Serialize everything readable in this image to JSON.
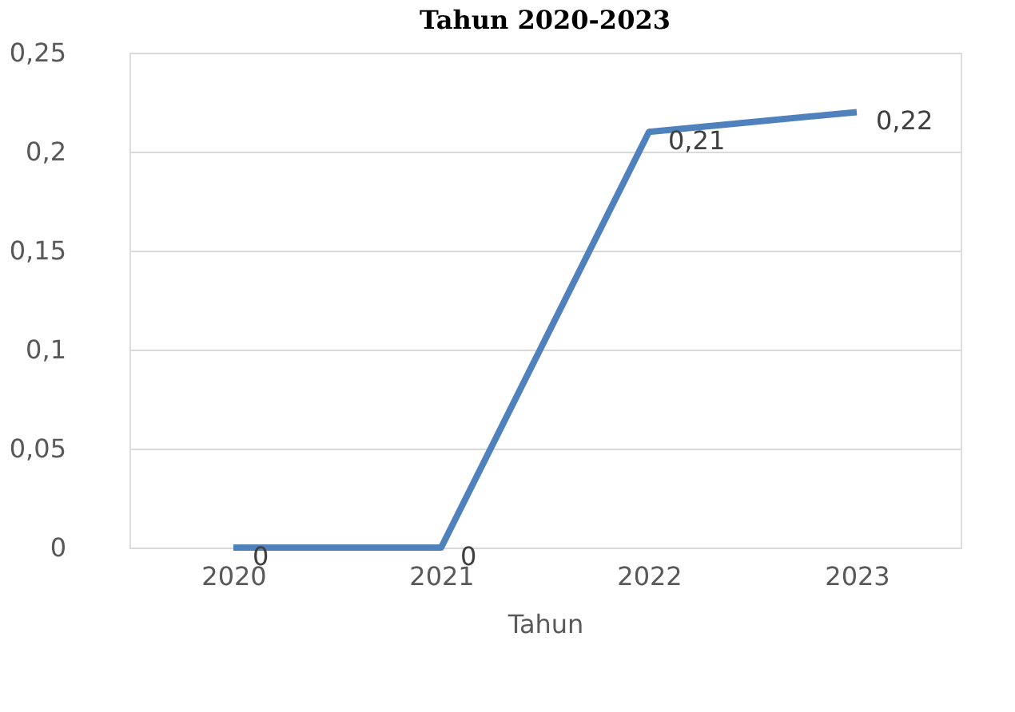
{
  "chart_data": {
    "type": "line",
    "title": "Tahun 2020-2023",
    "xlabel": "Tahun",
    "categories": [
      "2020",
      "2021",
      "2022",
      "2023"
    ],
    "series": [
      {
        "color": "#4f81bd",
        "values": [
          0,
          0,
          0.21,
          0.22
        ],
        "value_labels": [
          "0",
          "0",
          "0,21",
          "0,22"
        ]
      }
    ],
    "ylim": [
      0,
      0.25
    ],
    "yticks": [
      {
        "value": 0,
        "label": "0"
      },
      {
        "value": 0.05,
        "label": "0,05"
      },
      {
        "value": 0.1,
        "label": "0,1"
      },
      {
        "value": 0.15,
        "label": "0,15"
      },
      {
        "value": 0.2,
        "label": "0,2"
      },
      {
        "value": 0.25,
        "label": "0,25"
      }
    ],
    "grid": "y",
    "marker": "none",
    "line_style": "solid"
  }
}
